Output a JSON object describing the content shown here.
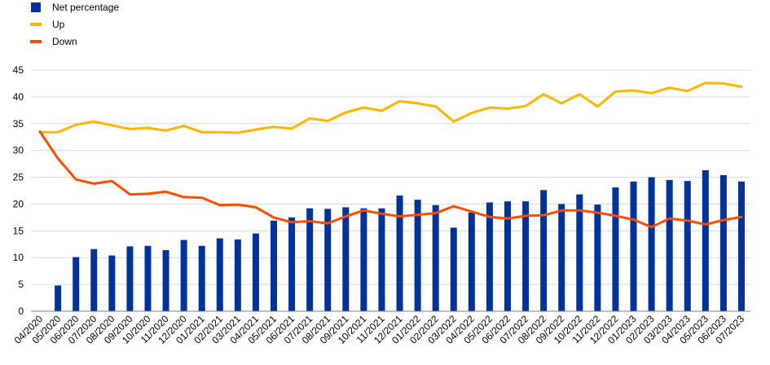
{
  "chart_data": {
    "type": "bar+line",
    "categories": [
      "04/2020",
      "05/2020",
      "06/2020",
      "07/2020",
      "08/2020",
      "09/2020",
      "10/2020",
      "11/2020",
      "12/2020",
      "01/2021",
      "02/2021",
      "03/2021",
      "04/2021",
      "05/2021",
      "06/2021",
      "07/2021",
      "08/2021",
      "09/2021",
      "10/2021",
      "11/2021",
      "12/2021",
      "01/2022",
      "02/2022",
      "03/2022",
      "04/2022",
      "05/2022",
      "06/2022",
      "07/2022",
      "08/2022",
      "09/2022",
      "10/2022",
      "11/2022",
      "12/2022",
      "01/2023",
      "02/2023",
      "03/2023",
      "04/2023",
      "05/2023",
      "06/2023",
      "07/2023"
    ],
    "ylim": [
      0,
      45
    ],
    "yticks": [
      0,
      5,
      10,
      15,
      20,
      25,
      30,
      35,
      40,
      45
    ],
    "grid": true,
    "legend_position": "top-left",
    "series": [
      {
        "name": "Net percentage",
        "kind": "bar",
        "color": "#003299",
        "values": [
          null,
          4.8,
          10.1,
          11.6,
          10.4,
          12.1,
          12.2,
          11.4,
          13.3,
          12.2,
          13.6,
          13.4,
          14.5,
          16.9,
          17.5,
          19.2,
          19.1,
          19.4,
          19.2,
          19.2,
          21.6,
          20.8,
          19.8,
          15.6,
          18.4,
          20.3,
          20.5,
          20.5,
          22.6,
          20.0,
          21.8,
          19.9,
          23.1,
          24.2,
          25.0,
          24.5,
          24.3,
          26.3,
          25.4,
          24.2
        ]
      },
      {
        "name": "Up",
        "kind": "line",
        "color": "#FFB400",
        "values": [
          33.4,
          33.4,
          34.8,
          35.4,
          34.7,
          34.0,
          34.2,
          33.7,
          34.6,
          33.4,
          33.4,
          33.3,
          33.9,
          34.4,
          34.1,
          36.0,
          35.5,
          37.1,
          38.0,
          37.4,
          39.2,
          38.8,
          38.2,
          35.4,
          37.0,
          38.0,
          37.8,
          38.3,
          40.5,
          38.8,
          40.5,
          38.2,
          41.0,
          41.2,
          40.7,
          41.7,
          41.1,
          42.6,
          42.5,
          41.9
        ]
      },
      {
        "name": "Down",
        "kind": "line",
        "color": "#FF4B00",
        "values": [
          33.5,
          28.5,
          24.6,
          23.8,
          24.3,
          21.8,
          21.9,
          22.3,
          21.3,
          21.2,
          19.8,
          19.9,
          19.4,
          17.5,
          16.6,
          16.8,
          16.4,
          17.7,
          18.8,
          18.2,
          17.7,
          18.0,
          18.3,
          19.6,
          18.6,
          17.6,
          17.3,
          17.8,
          17.9,
          18.8,
          18.8,
          18.4,
          17.8,
          17.1,
          15.7,
          17.3,
          16.9,
          16.2,
          17.0,
          17.6
        ]
      }
    ]
  }
}
